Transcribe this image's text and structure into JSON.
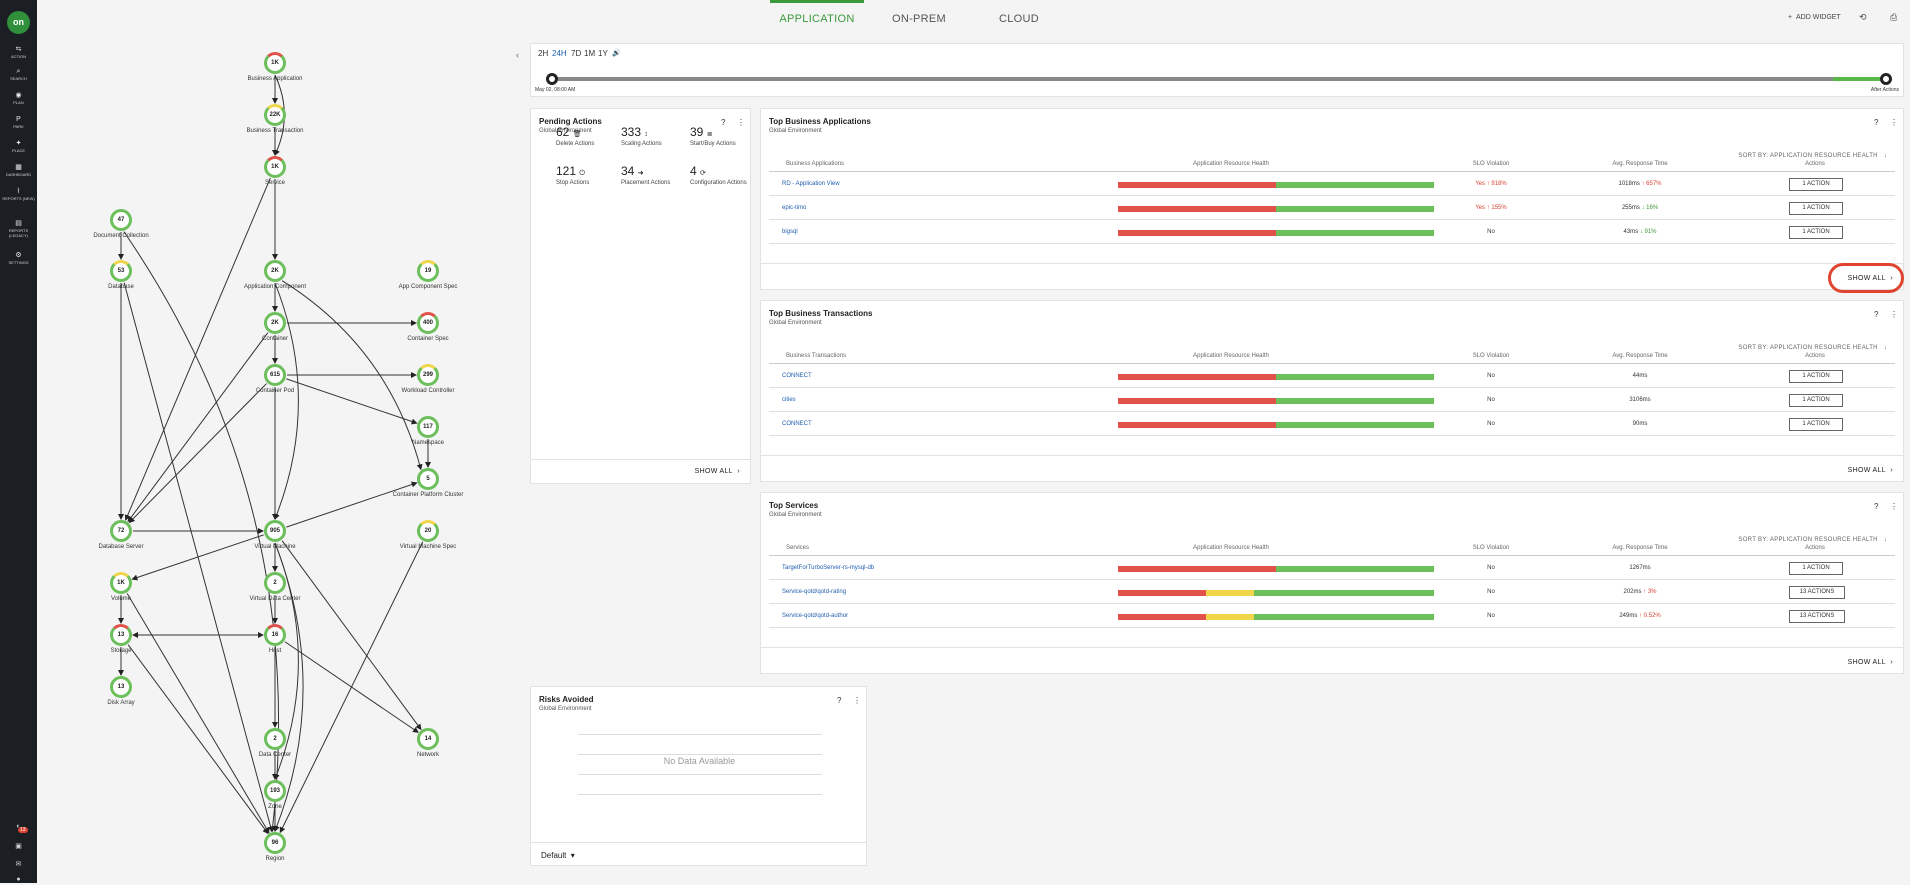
{
  "nav": {
    "logo": "on",
    "items": [
      "ACTION",
      "SEARCH",
      "PLAN",
      "PARK",
      "PLACE",
      "DASHBOARD",
      "REPORTS (NEW)",
      "REPORTS (LEGACY)",
      "SETTINGS"
    ],
    "notification_count": "13"
  },
  "tabs": [
    "APPLICATION",
    "ON-PREM",
    "CLOUD"
  ],
  "header_actions": {
    "add_widget": "ADD WIDGET"
  },
  "graph": {
    "nodes": [
      {
        "id": "bizapp",
        "value": "1K",
        "label": "Business Application"
      },
      {
        "id": "biztxn",
        "value": "22K",
        "label": "Business Transaction"
      },
      {
        "id": "service",
        "value": "1K",
        "label": "Service"
      },
      {
        "id": "doccol",
        "value": "47",
        "label": "Document Collection"
      },
      {
        "id": "database",
        "value": "53",
        "label": "Database"
      },
      {
        "id": "appcomp",
        "value": "2K",
        "label": "Application Component"
      },
      {
        "id": "appcompspec",
        "value": "19",
        "label": "App Component Spec"
      },
      {
        "id": "container",
        "value": "2K",
        "label": "Container"
      },
      {
        "id": "containerspec",
        "value": "400",
        "label": "Container Spec"
      },
      {
        "id": "containerpod",
        "value": "615",
        "label": "Container Pod"
      },
      {
        "id": "workload",
        "value": "299",
        "label": "Workload Controller"
      },
      {
        "id": "namespace",
        "value": "117",
        "label": "Namespace"
      },
      {
        "id": "cpcluster",
        "value": "5",
        "label": "Container Platform Cluster"
      },
      {
        "id": "dbserver",
        "value": "72",
        "label": "Database Server"
      },
      {
        "id": "vm",
        "value": "905",
        "label": "Virtual Machine"
      },
      {
        "id": "vmspec",
        "value": "20",
        "label": "Virtual Machine Spec"
      },
      {
        "id": "volume",
        "value": "1K",
        "label": "Volume"
      },
      {
        "id": "vdc",
        "value": "2",
        "label": "Virtual Data Center"
      },
      {
        "id": "storage",
        "value": "13",
        "label": "Storage"
      },
      {
        "id": "host",
        "value": "16",
        "label": "Host"
      },
      {
        "id": "diskarray",
        "value": "13",
        "label": "Disk Array"
      },
      {
        "id": "datacenter",
        "value": "2",
        "label": "Data Center"
      },
      {
        "id": "network",
        "value": "14",
        "label": "Network"
      },
      {
        "id": "zone",
        "value": "193",
        "label": "Zone"
      },
      {
        "id": "region",
        "value": "96",
        "label": "Region"
      }
    ]
  },
  "timeline": {
    "ranges": [
      "2H",
      "24H",
      "7D",
      "1M",
      "1Y"
    ],
    "selected": "24H",
    "start_label": "May 02, 08:00 AM",
    "end_label": "After Actions"
  },
  "pending_actions": {
    "title": "Pending Actions",
    "subtitle": "Global Environment",
    "items": [
      {
        "count": "62",
        "label": "Delete Actions",
        "icon": "trash-icon"
      },
      {
        "count": "333",
        "label": "Scaling Actions",
        "icon": "scale-icon"
      },
      {
        "count": "39",
        "label": "Start/Buy Actions",
        "icon": "list-icon"
      },
      {
        "count": "121",
        "label": "Stop Actions",
        "icon": "power-icon"
      },
      {
        "count": "34",
        "label": "Placement Actions",
        "icon": "arrow-icon"
      },
      {
        "count": "4",
        "label": "Configuration Actions",
        "icon": "refresh-icon"
      }
    ],
    "show_all": "SHOW ALL"
  },
  "top_apps": {
    "title": "Top Business Applications",
    "subtitle": "Global Environment",
    "sort": "SORT BY: APPLICATION RESOURCE HEALTH",
    "columns": [
      "Business Applications",
      "Application Resource Health",
      "SLO Violation",
      "Avg. Response Time",
      "Actions"
    ],
    "rows": [
      {
        "name": "RD - Application View",
        "slo": "Yes",
        "slo_delta": "918%",
        "resp": "1018ms",
        "resp_delta": "657%",
        "resp_dir": "up",
        "action": "1 ACTION",
        "health": [
          0.5,
          0,
          0.5
        ]
      },
      {
        "name": "epic-timo",
        "slo": "Yes",
        "slo_delta": "155%",
        "resp": "255ms",
        "resp_delta": "16%",
        "resp_dir": "down",
        "action": "1 ACTION",
        "health": [
          0.5,
          0,
          0.5
        ]
      },
      {
        "name": "bigsql",
        "slo": "No",
        "slo_delta": "",
        "resp": "43ms",
        "resp_delta": "91%",
        "resp_dir": "down",
        "action": "1 ACTION",
        "health": [
          0.5,
          0,
          0.5
        ]
      }
    ],
    "show_all": "SHOW ALL"
  },
  "top_txns": {
    "title": "Top Business Transactions",
    "subtitle": "Global Environment",
    "sort": "SORT BY: APPLICATION RESOURCE HEALTH",
    "columns": [
      "Business Transactions",
      "Application Resource Health",
      "SLO Violation",
      "Avg. Response Time",
      "Actions"
    ],
    "rows": [
      {
        "name": "CONNECT",
        "slo": "No",
        "resp": "44ms",
        "action": "1 ACTION",
        "health": [
          0.5,
          0,
          0.5
        ]
      },
      {
        "name": "cities",
        "slo": "No",
        "resp": "3106ms",
        "action": "1 ACTION",
        "health": [
          0.5,
          0,
          0.5
        ]
      },
      {
        "name": "CONNECT",
        "slo": "No",
        "resp": "90ms",
        "action": "1 ACTION",
        "health": [
          0.5,
          0,
          0.5
        ]
      }
    ],
    "show_all": "SHOW ALL"
  },
  "top_services": {
    "title": "Top Services",
    "subtitle": "Global Environment",
    "sort": "SORT BY: APPLICATION RESOURCE HEALTH",
    "columns": [
      "Services",
      "Application Resource Health",
      "SLO Violation",
      "Avg. Response Time",
      "Actions"
    ],
    "rows": [
      {
        "name": "TargetForTurboServer-rs-mysql-db",
        "slo": "No",
        "resp": "1267ms",
        "resp_delta": "",
        "action": "1 ACTION",
        "health": [
          0.5,
          0,
          0.5
        ]
      },
      {
        "name": "Service-qotd/qotd-rating",
        "slo": "No",
        "resp": "202ms",
        "resp_delta": "3%",
        "action": "13 ACTIONS",
        "health": [
          0.28,
          0.15,
          0.57
        ]
      },
      {
        "name": "Service-qotd/qotd-author",
        "slo": "No",
        "resp": "249ms",
        "resp_delta": "0.52%",
        "action": "13 ACTIONS",
        "health": [
          0.28,
          0.15,
          0.57
        ]
      }
    ],
    "show_all": "SHOW ALL"
  },
  "risks": {
    "title": "Risks Avoided",
    "subtitle": "Global Environment",
    "empty": "No Data Available",
    "dropdown": "Default"
  },
  "colors": {
    "accent": "#3c9a3c",
    "red": "#e0524a",
    "yellow": "#f0d64a",
    "green": "#6cbf5a",
    "highlight": "#e0432f"
  }
}
